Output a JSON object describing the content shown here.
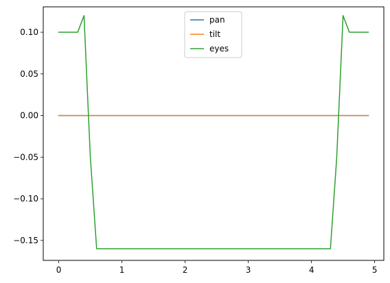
{
  "chart_data": {
    "type": "line",
    "title": "",
    "xlabel": "",
    "ylabel": "",
    "xlim": [
      -0.245,
      5.145
    ],
    "ylim": [
      -0.174,
      0.1305
    ],
    "xticks": [
      0,
      1,
      2,
      3,
      4,
      5
    ],
    "xtick_labels": [
      "0",
      "1",
      "2",
      "3",
      "4",
      "5"
    ],
    "yticks": [
      -0.15,
      -0.1,
      -0.05,
      0.0,
      0.05,
      0.1
    ],
    "ytick_labels": [
      "−0.15",
      "−0.10",
      "−0.05",
      "0.00",
      "0.05",
      "0.10"
    ],
    "grid": false,
    "legend_position": "top-center",
    "series": [
      {
        "name": "pan",
        "color": "#1f77b4",
        "x": [
          0,
          4.9
        ],
        "y": [
          0,
          0
        ]
      },
      {
        "name": "tilt",
        "color": "#ff7f0e",
        "x": [
          0,
          4.9
        ],
        "y": [
          0,
          0
        ]
      },
      {
        "name": "eyes",
        "color": "#2ca02c",
        "x": [
          0,
          0.1,
          0.2,
          0.3,
          0.4,
          0.5,
          0.6,
          0.7,
          0.8,
          0.9,
          1.0,
          1.1,
          1.2,
          1.3,
          1.4,
          1.5,
          1.6,
          1.7,
          1.8,
          1.9,
          2.0,
          2.1,
          2.2,
          2.3,
          2.4,
          2.5,
          2.6,
          2.7,
          2.8,
          2.9,
          3.0,
          3.1,
          3.2,
          3.3,
          3.4,
          3.5,
          3.6,
          3.7,
          3.8,
          3.9,
          4.0,
          4.1,
          4.2,
          4.3,
          4.4,
          4.5,
          4.6,
          4.7,
          4.8,
          4.9
        ],
        "y": [
          0.1,
          0.1,
          0.1,
          0.1,
          0.12,
          -0.05,
          -0.16,
          -0.16,
          -0.16,
          -0.16,
          -0.16,
          -0.16,
          -0.16,
          -0.16,
          -0.16,
          -0.16,
          -0.16,
          -0.16,
          -0.16,
          -0.16,
          -0.16,
          -0.16,
          -0.16,
          -0.16,
          -0.16,
          -0.16,
          -0.16,
          -0.16,
          -0.16,
          -0.16,
          -0.16,
          -0.16,
          -0.16,
          -0.16,
          -0.16,
          -0.16,
          -0.16,
          -0.16,
          -0.16,
          -0.16,
          -0.16,
          -0.16,
          -0.16,
          -0.16,
          -0.05,
          0.12,
          0.1,
          0.1,
          0.1,
          0.1
        ]
      }
    ]
  }
}
